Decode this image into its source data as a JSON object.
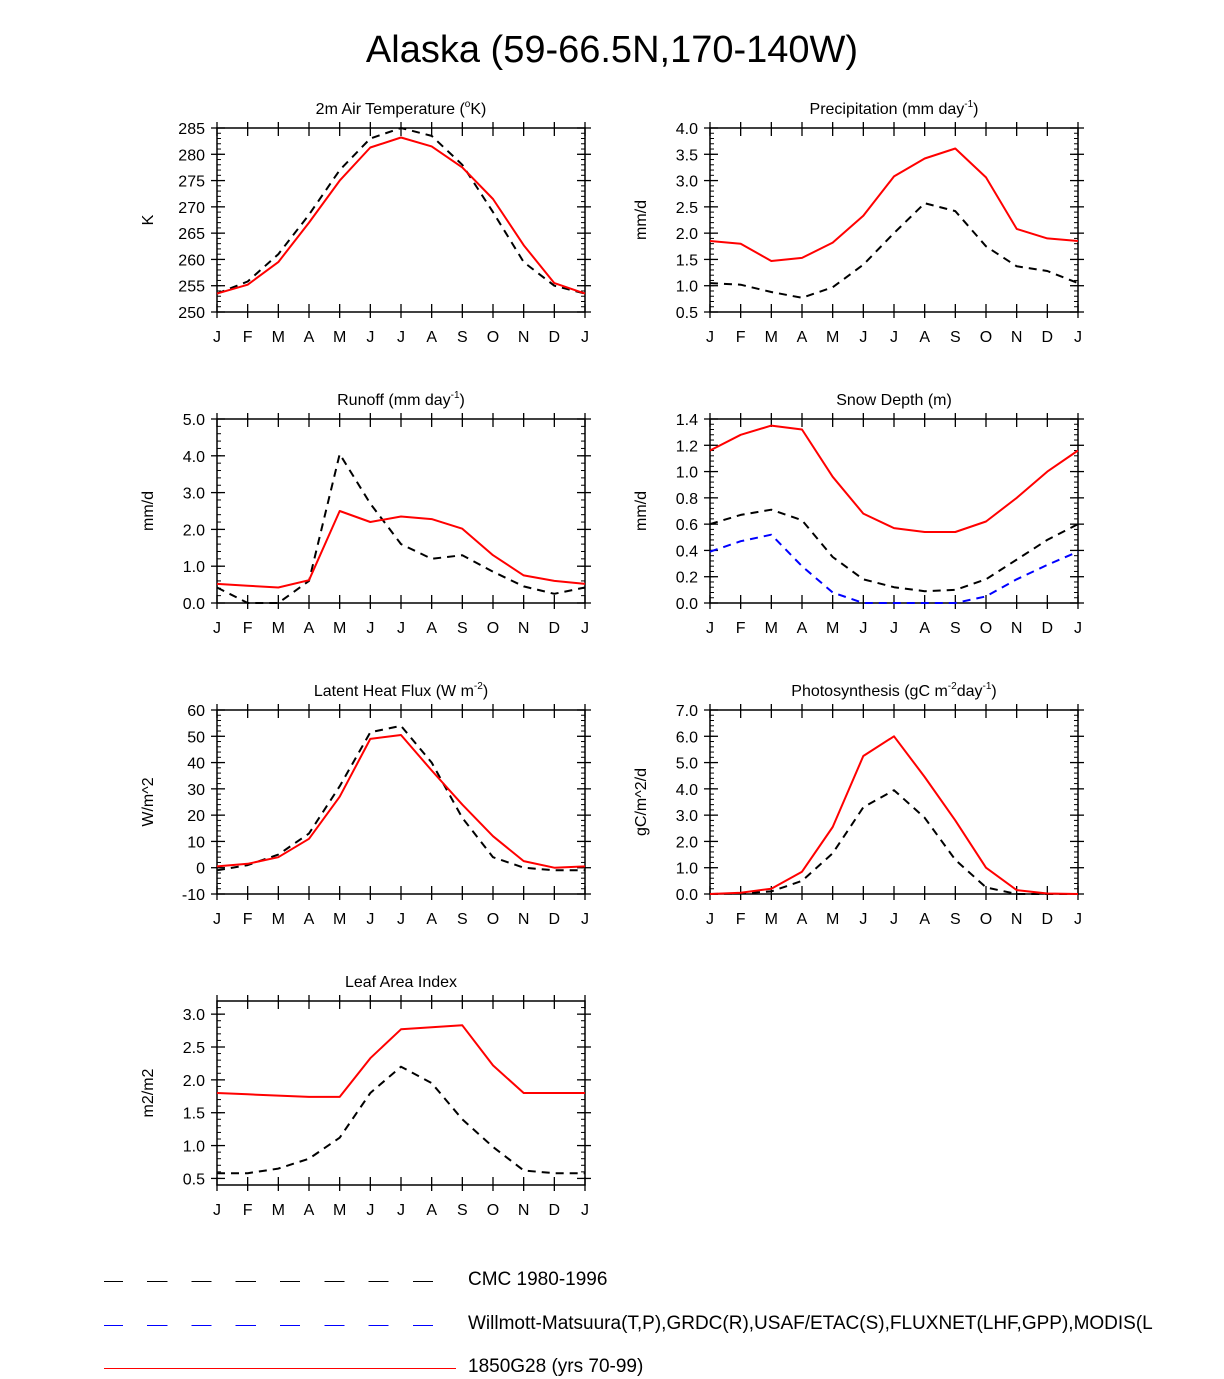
{
  "page_title": "Alaska (59-66.5N,170-140W)",
  "months": [
    "J",
    "F",
    "M",
    "A",
    "M",
    "J",
    "J",
    "A",
    "S",
    "O",
    "N",
    "D",
    "J"
  ],
  "colors": {
    "obs": "#000000",
    "obs2": "#0000ff",
    "model": "#ff0000"
  },
  "legend": [
    {
      "label": "CMC 1980-1996",
      "color": "#000000",
      "style": "dashed"
    },
    {
      "label": "Willmott-Matsuura(T,P),GRDC(R),USAF/ETAC(S),FLUXNET(LHF,GPP),MODIS(L",
      "color": "#0000ff",
      "style": "dashed"
    },
    {
      "label": "1850G28 (yrs 70-99)",
      "color": "#ff0000",
      "style": "solid"
    }
  ],
  "chart_data": [
    {
      "type": "line",
      "title": "2m Air Temperature (",
      "title_sup": "o",
      "title_post": "K)",
      "ylabel": "K",
      "ylim": [
        250,
        285
      ],
      "yticks": [
        250,
        255,
        260,
        265,
        270,
        275,
        280,
        285
      ],
      "ydec": 0,
      "series": [
        {
          "name": "obs",
          "values": [
            253.5,
            255.8,
            261,
            268.5,
            277,
            283,
            285,
            283.5,
            278,
            269,
            259.5,
            255,
            253.5
          ]
        },
        {
          "name": "model",
          "values": [
            253.5,
            255.2,
            259.5,
            267,
            275,
            281.3,
            283.2,
            281.5,
            277.5,
            271.5,
            262.7,
            255.5,
            253.5
          ]
        }
      ]
    },
    {
      "type": "line",
      "title": "Precipitation (mm day",
      "title_sup": "-1",
      "title_post": ")",
      "ylabel": "mm/d",
      "ylim": [
        0.5,
        4.0
      ],
      "yticks": [
        0.5,
        1.0,
        1.5,
        2.0,
        2.5,
        3.0,
        3.5,
        4.0
      ],
      "ydec": 1,
      "series": [
        {
          "name": "obs",
          "values": [
            1.05,
            1.02,
            0.88,
            0.77,
            0.97,
            1.4,
            2.0,
            2.57,
            2.42,
            1.75,
            1.37,
            1.28,
            1.05
          ]
        },
        {
          "name": "model",
          "values": [
            1.85,
            1.8,
            1.47,
            1.53,
            1.82,
            2.33,
            3.08,
            3.42,
            3.61,
            3.06,
            2.08,
            1.9,
            1.85
          ]
        }
      ]
    },
    {
      "type": "line",
      "title": "Runoff (mm day",
      "title_sup": "-1",
      "title_post": ")",
      "ylabel": "mm/d",
      "ylim": [
        0,
        5
      ],
      "yticks": [
        0,
        1,
        2,
        3,
        4,
        5
      ],
      "ydec": 1,
      "series": [
        {
          "name": "obs",
          "values": [
            0.42,
            0.0,
            0.0,
            0.6,
            4.05,
            2.7,
            1.6,
            1.2,
            1.3,
            0.85,
            0.45,
            0.25,
            0.42
          ]
        },
        {
          "name": "model",
          "values": [
            0.52,
            0.47,
            0.42,
            0.62,
            2.5,
            2.2,
            2.35,
            2.28,
            2.02,
            1.3,
            0.75,
            0.6,
            0.52
          ]
        }
      ]
    },
    {
      "type": "line",
      "title": "Snow Depth (m)",
      "title_sup": "",
      "title_post": "",
      "ylabel": "mm/d",
      "ylim": [
        0,
        1.4
      ],
      "yticks": [
        0,
        0.2,
        0.4,
        0.6,
        0.8,
        1.0,
        1.2,
        1.4
      ],
      "ydec": 1,
      "series": [
        {
          "name": "obs",
          "values": [
            0.6,
            0.67,
            0.71,
            0.63,
            0.35,
            0.18,
            0.12,
            0.09,
            0.1,
            0.18,
            0.33,
            0.48,
            0.6
          ]
        },
        {
          "name": "obs2",
          "values": [
            0.39,
            0.47,
            0.52,
            0.28,
            0.08,
            0.0,
            0.0,
            0.0,
            0.0,
            0.05,
            0.18,
            0.29,
            0.39
          ]
        },
        {
          "name": "model",
          "values": [
            1.16,
            1.28,
            1.35,
            1.32,
            0.96,
            0.68,
            0.57,
            0.54,
            0.54,
            0.62,
            0.8,
            1.0,
            1.16
          ]
        }
      ]
    },
    {
      "type": "line",
      "title": "Latent Heat Flux (W m",
      "title_sup": "-2",
      "title_post": ")",
      "ylabel": "W/m^2",
      "ylim": [
        -10,
        60
      ],
      "yticks": [
        -10,
        0,
        10,
        20,
        30,
        40,
        50,
        60
      ],
      "ydec": 0,
      "series": [
        {
          "name": "obs",
          "values": [
            -1,
            1,
            5,
            13,
            31,
            51.5,
            54,
            40,
            19,
            4,
            0,
            -1,
            -1
          ]
        },
        {
          "name": "model",
          "values": [
            0.5,
            1.5,
            4,
            11,
            27,
            49,
            50.5,
            37,
            24,
            12,
            2.5,
            0,
            0.5
          ]
        }
      ]
    },
    {
      "type": "line",
      "title": "Photosynthesis (gC m",
      "title_sup": "-2",
      "title_post": "day",
      "title_sup2": "-1",
      "title_post2": ")",
      "ylabel": "gC/m^2/d",
      "ylim": [
        0,
        7
      ],
      "yticks": [
        0,
        1,
        2,
        3,
        4,
        5,
        6,
        7
      ],
      "ydec": 1,
      "series": [
        {
          "name": "obs",
          "values": [
            0.0,
            0.02,
            0.1,
            0.5,
            1.55,
            3.3,
            3.95,
            2.9,
            1.3,
            0.25,
            0.0,
            0.0,
            0.0
          ]
        },
        {
          "name": "model",
          "values": [
            0.0,
            0.05,
            0.2,
            0.85,
            2.55,
            5.25,
            6.0,
            4.45,
            2.8,
            1.0,
            0.15,
            0.02,
            0.0
          ]
        }
      ]
    },
    {
      "type": "line",
      "title": "Leaf Area Index",
      "title_sup": "",
      "title_post": "",
      "ylabel": "m2/m2",
      "ylim": [
        0.4,
        3.2
      ],
      "yticks": [
        0.5,
        1.0,
        1.5,
        2.0,
        2.5,
        3.0
      ],
      "ydec": 1,
      "series": [
        {
          "name": "obs",
          "values": [
            0.58,
            0.58,
            0.65,
            0.8,
            1.12,
            1.8,
            2.2,
            1.95,
            1.4,
            0.98,
            0.62,
            0.58,
            0.58
          ]
        },
        {
          "name": "model",
          "values": [
            1.8,
            1.78,
            1.76,
            1.74,
            1.74,
            2.33,
            2.77,
            2.8,
            2.83,
            2.22,
            1.8,
            1.8,
            1.8
          ]
        }
      ]
    }
  ]
}
